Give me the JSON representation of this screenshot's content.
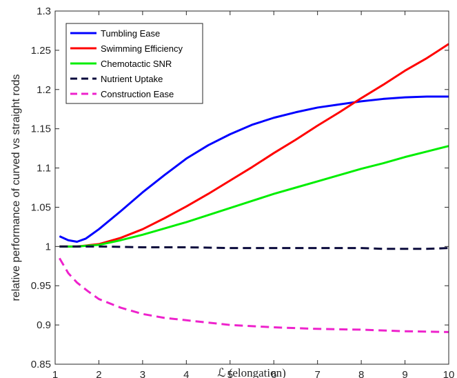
{
  "chart_data": {
    "type": "line",
    "title": "",
    "xlabel": "ℒ (elongation)",
    "ylabel": "relative performance of curved vs straight rods",
    "xlim": [
      1,
      10
    ],
    "ylim": [
      0.85,
      1.3
    ],
    "xticks": [
      1,
      2,
      3,
      4,
      5,
      6,
      7,
      8,
      9,
      10
    ],
    "yticks": [
      0.85,
      0.9,
      0.95,
      1,
      1.05,
      1.1,
      1.15,
      1.2,
      1.25,
      1.3
    ],
    "xtick_labels": [
      "1",
      "2",
      "3",
      "4",
      "5",
      "6",
      "7",
      "8",
      "9",
      "10"
    ],
    "ytick_labels": [
      "0.85",
      "0.9",
      "0.95",
      "1",
      "1.05",
      "1.1",
      "1.15",
      "1.2",
      "1.25",
      "1.3"
    ],
    "grid": false,
    "legend_position": "top-left",
    "series": [
      {
        "name": "Tumbling Ease",
        "color": "#0000ff",
        "dash": "solid",
        "points": [
          [
            1.1,
            1.013
          ],
          [
            1.3,
            1.008
          ],
          [
            1.5,
            1.006
          ],
          [
            1.7,
            1.01
          ],
          [
            2.0,
            1.022
          ],
          [
            2.5,
            1.045
          ],
          [
            3.0,
            1.069
          ],
          [
            3.5,
            1.091
          ],
          [
            4.0,
            1.112
          ],
          [
            4.5,
            1.129
          ],
          [
            5.0,
            1.143
          ],
          [
            5.5,
            1.155
          ],
          [
            6.0,
            1.164
          ],
          [
            6.5,
            1.171
          ],
          [
            7.0,
            1.177
          ],
          [
            7.5,
            1.181
          ],
          [
            8.0,
            1.185
          ],
          [
            8.5,
            1.188
          ],
          [
            9.0,
            1.19
          ],
          [
            9.5,
            1.191
          ],
          [
            10.0,
            1.191
          ]
        ]
      },
      {
        "name": "Swimming Efficiency",
        "color": "#ff0000",
        "dash": "solid",
        "points": [
          [
            1.1,
            1.0
          ],
          [
            1.5,
            1.0
          ],
          [
            2.0,
            1.003
          ],
          [
            2.5,
            1.011
          ],
          [
            3.0,
            1.022
          ],
          [
            3.5,
            1.036
          ],
          [
            4.0,
            1.051
          ],
          [
            4.5,
            1.067
          ],
          [
            5.0,
            1.084
          ],
          [
            5.5,
            1.101
          ],
          [
            6.0,
            1.119
          ],
          [
            6.5,
            1.136
          ],
          [
            7.0,
            1.154
          ],
          [
            7.5,
            1.171
          ],
          [
            8.0,
            1.189
          ],
          [
            8.5,
            1.206
          ],
          [
            9.0,
            1.224
          ],
          [
            9.5,
            1.24
          ],
          [
            10.0,
            1.258
          ]
        ]
      },
      {
        "name": "Chemotactic SNR",
        "color": "#00ee00",
        "dash": "solid",
        "points": [
          [
            1.1,
            1.0
          ],
          [
            1.5,
            1.0
          ],
          [
            2.0,
            1.002
          ],
          [
            2.5,
            1.008
          ],
          [
            3.0,
            1.015
          ],
          [
            3.5,
            1.023
          ],
          [
            4.0,
            1.031
          ],
          [
            4.5,
            1.04
          ],
          [
            5.0,
            1.049
          ],
          [
            5.5,
            1.058
          ],
          [
            6.0,
            1.067
          ],
          [
            6.5,
            1.075
          ],
          [
            7.0,
            1.083
          ],
          [
            7.5,
            1.091
          ],
          [
            8.0,
            1.099
          ],
          [
            8.5,
            1.106
          ],
          [
            9.0,
            1.114
          ],
          [
            9.5,
            1.121
          ],
          [
            10.0,
            1.128
          ]
        ]
      },
      {
        "name": "Nutrient Uptake",
        "color": "#0a0a3c",
        "dash": "dashed",
        "points": [
          [
            1.1,
            1.0
          ],
          [
            2.0,
            1.0
          ],
          [
            3.0,
            0.999
          ],
          [
            4.0,
            0.999
          ],
          [
            5.0,
            0.998
          ],
          [
            6.0,
            0.998
          ],
          [
            7.0,
            0.998
          ],
          [
            8.0,
            0.998
          ],
          [
            8.5,
            0.997
          ],
          [
            9.0,
            0.997
          ],
          [
            9.5,
            0.997
          ],
          [
            10.0,
            0.998
          ]
        ]
      },
      {
        "name": "Construction Ease",
        "color": "#ee22cc",
        "dash": "dashed",
        "points": [
          [
            1.1,
            0.985
          ],
          [
            1.3,
            0.966
          ],
          [
            1.5,
            0.954
          ],
          [
            1.75,
            0.943
          ],
          [
            2.0,
            0.933
          ],
          [
            2.5,
            0.922
          ],
          [
            3.0,
            0.914
          ],
          [
            3.5,
            0.909
          ],
          [
            4.0,
            0.906
          ],
          [
            5.0,
            0.9
          ],
          [
            6.0,
            0.897
          ],
          [
            7.0,
            0.895
          ],
          [
            8.0,
            0.894
          ],
          [
            9.0,
            0.892
          ],
          [
            10.0,
            0.891
          ]
        ]
      }
    ]
  }
}
